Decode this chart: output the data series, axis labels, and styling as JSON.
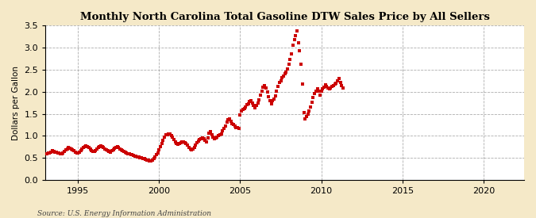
{
  "title": "Monthly North Carolina Total Gasoline DTW Sales Price by All Sellers",
  "ylabel": "Dollars per Gallon",
  "source": "Source: U.S. Energy Information Administration",
  "background_color": "#f5e9c8",
  "plot_bg_color": "#ffffff",
  "marker_color": "#cc0000",
  "grid_color": "#999999",
  "ylim": [
    0.0,
    3.5
  ],
  "yticks": [
    0.0,
    0.5,
    1.0,
    1.5,
    2.0,
    2.5,
    3.0,
    3.5
  ],
  "xlim_start": 1993.0,
  "xlim_end": 2022.5,
  "xticks": [
    1995,
    2000,
    2005,
    2010,
    2015,
    2020
  ],
  "data": [
    [
      1993.0,
      0.59
    ],
    [
      1993.08,
      0.6
    ],
    [
      1993.17,
      0.61
    ],
    [
      1993.25,
      0.62
    ],
    [
      1993.33,
      0.64
    ],
    [
      1993.42,
      0.66
    ],
    [
      1993.5,
      0.65
    ],
    [
      1993.58,
      0.64
    ],
    [
      1993.67,
      0.63
    ],
    [
      1993.75,
      0.62
    ],
    [
      1993.83,
      0.61
    ],
    [
      1993.92,
      0.6
    ],
    [
      1994.0,
      0.6
    ],
    [
      1994.08,
      0.62
    ],
    [
      1994.17,
      0.65
    ],
    [
      1994.25,
      0.68
    ],
    [
      1994.33,
      0.71
    ],
    [
      1994.42,
      0.73
    ],
    [
      1994.5,
      0.72
    ],
    [
      1994.58,
      0.7
    ],
    [
      1994.67,
      0.68
    ],
    [
      1994.75,
      0.66
    ],
    [
      1994.83,
      0.64
    ],
    [
      1994.92,
      0.62
    ],
    [
      1995.0,
      0.61
    ],
    [
      1995.08,
      0.63
    ],
    [
      1995.17,
      0.66
    ],
    [
      1995.25,
      0.7
    ],
    [
      1995.33,
      0.74
    ],
    [
      1995.42,
      0.76
    ],
    [
      1995.5,
      0.77
    ],
    [
      1995.58,
      0.75
    ],
    [
      1995.67,
      0.73
    ],
    [
      1995.75,
      0.7
    ],
    [
      1995.83,
      0.67
    ],
    [
      1995.92,
      0.65
    ],
    [
      1996.0,
      0.65
    ],
    [
      1996.08,
      0.67
    ],
    [
      1996.17,
      0.7
    ],
    [
      1996.25,
      0.74
    ],
    [
      1996.33,
      0.76
    ],
    [
      1996.42,
      0.77
    ],
    [
      1996.5,
      0.75
    ],
    [
      1996.58,
      0.73
    ],
    [
      1996.67,
      0.71
    ],
    [
      1996.75,
      0.69
    ],
    [
      1996.83,
      0.67
    ],
    [
      1996.92,
      0.65
    ],
    [
      1997.0,
      0.64
    ],
    [
      1997.08,
      0.66
    ],
    [
      1997.17,
      0.69
    ],
    [
      1997.25,
      0.72
    ],
    [
      1997.33,
      0.74
    ],
    [
      1997.42,
      0.75
    ],
    [
      1997.5,
      0.73
    ],
    [
      1997.58,
      0.71
    ],
    [
      1997.67,
      0.69
    ],
    [
      1997.75,
      0.67
    ],
    [
      1997.83,
      0.65
    ],
    [
      1997.92,
      0.63
    ],
    [
      1998.0,
      0.62
    ],
    [
      1998.08,
      0.6
    ],
    [
      1998.17,
      0.59
    ],
    [
      1998.25,
      0.58
    ],
    [
      1998.33,
      0.57
    ],
    [
      1998.42,
      0.56
    ],
    [
      1998.5,
      0.55
    ],
    [
      1998.58,
      0.54
    ],
    [
      1998.67,
      0.53
    ],
    [
      1998.75,
      0.52
    ],
    [
      1998.83,
      0.51
    ],
    [
      1998.92,
      0.5
    ],
    [
      1999.0,
      0.49
    ],
    [
      1999.08,
      0.48
    ],
    [
      1999.17,
      0.47
    ],
    [
      1999.25,
      0.46
    ],
    [
      1999.33,
      0.45
    ],
    [
      1999.42,
      0.44
    ],
    [
      1999.5,
      0.44
    ],
    [
      1999.58,
      0.46
    ],
    [
      1999.67,
      0.49
    ],
    [
      1999.75,
      0.53
    ],
    [
      1999.83,
      0.57
    ],
    [
      1999.92,
      0.62
    ],
    [
      2000.0,
      0.68
    ],
    [
      2000.08,
      0.75
    ],
    [
      2000.17,
      0.82
    ],
    [
      2000.25,
      0.9
    ],
    [
      2000.33,
      0.97
    ],
    [
      2000.42,
      1.02
    ],
    [
      2000.5,
      1.03
    ],
    [
      2000.58,
      1.04
    ],
    [
      2000.67,
      1.04
    ],
    [
      2000.75,
      1.01
    ],
    [
      2000.83,
      0.97
    ],
    [
      2000.92,
      0.91
    ],
    [
      2001.0,
      0.86
    ],
    [
      2001.08,
      0.83
    ],
    [
      2001.17,
      0.81
    ],
    [
      2001.25,
      0.82
    ],
    [
      2001.33,
      0.84
    ],
    [
      2001.42,
      0.86
    ],
    [
      2001.5,
      0.87
    ],
    [
      2001.58,
      0.85
    ],
    [
      2001.67,
      0.83
    ],
    [
      2001.75,
      0.79
    ],
    [
      2001.83,
      0.74
    ],
    [
      2001.92,
      0.7
    ],
    [
      2002.0,
      0.68
    ],
    [
      2002.08,
      0.71
    ],
    [
      2002.17,
      0.74
    ],
    [
      2002.25,
      0.79
    ],
    [
      2002.33,
      0.84
    ],
    [
      2002.42,
      0.89
    ],
    [
      2002.5,
      0.92
    ],
    [
      2002.58,
      0.94
    ],
    [
      2002.67,
      0.95
    ],
    [
      2002.75,
      0.93
    ],
    [
      2002.83,
      0.9
    ],
    [
      2002.92,
      0.87
    ],
    [
      2003.0,
      0.96
    ],
    [
      2003.08,
      1.06
    ],
    [
      2003.17,
      1.09
    ],
    [
      2003.25,
      1.03
    ],
    [
      2003.33,
      0.97
    ],
    [
      2003.42,
      0.94
    ],
    [
      2003.5,
      0.95
    ],
    [
      2003.58,
      0.97
    ],
    [
      2003.67,
      1.0
    ],
    [
      2003.75,
      1.02
    ],
    [
      2003.83,
      1.05
    ],
    [
      2003.92,
      1.11
    ],
    [
      2004.0,
      1.17
    ],
    [
      2004.08,
      1.22
    ],
    [
      2004.17,
      1.32
    ],
    [
      2004.25,
      1.37
    ],
    [
      2004.33,
      1.38
    ],
    [
      2004.42,
      1.33
    ],
    [
      2004.5,
      1.28
    ],
    [
      2004.58,
      1.25
    ],
    [
      2004.67,
      1.22
    ],
    [
      2004.75,
      1.19
    ],
    [
      2004.83,
      1.18
    ],
    [
      2004.92,
      1.17
    ],
    [
      2005.0,
      1.48
    ],
    [
      2005.08,
      1.57
    ],
    [
      2005.17,
      1.6
    ],
    [
      2005.25,
      1.62
    ],
    [
      2005.33,
      1.66
    ],
    [
      2005.42,
      1.7
    ],
    [
      2005.5,
      1.73
    ],
    [
      2005.58,
      1.77
    ],
    [
      2005.67,
      1.8
    ],
    [
      2005.75,
      1.74
    ],
    [
      2005.83,
      1.69
    ],
    [
      2005.92,
      1.63
    ],
    [
      2006.0,
      1.68
    ],
    [
      2006.08,
      1.74
    ],
    [
      2006.17,
      1.82
    ],
    [
      2006.25,
      1.92
    ],
    [
      2006.33,
      2.02
    ],
    [
      2006.42,
      2.1
    ],
    [
      2006.5,
      2.13
    ],
    [
      2006.58,
      2.08
    ],
    [
      2006.67,
      1.99
    ],
    [
      2006.75,
      1.89
    ],
    [
      2006.83,
      1.79
    ],
    [
      2006.92,
      1.73
    ],
    [
      2007.0,
      1.79
    ],
    [
      2007.08,
      1.84
    ],
    [
      2007.17,
      1.9
    ],
    [
      2007.25,
      2.01
    ],
    [
      2007.33,
      2.11
    ],
    [
      2007.42,
      2.2
    ],
    [
      2007.5,
      2.25
    ],
    [
      2007.58,
      2.31
    ],
    [
      2007.67,
      2.36
    ],
    [
      2007.75,
      2.41
    ],
    [
      2007.83,
      2.44
    ],
    [
      2007.92,
      2.52
    ],
    [
      2008.0,
      2.62
    ],
    [
      2008.08,
      2.72
    ],
    [
      2008.17,
      2.85
    ],
    [
      2008.25,
      3.05
    ],
    [
      2008.33,
      3.18
    ],
    [
      2008.42,
      3.27
    ],
    [
      2008.5,
      3.37
    ],
    [
      2008.58,
      3.1
    ],
    [
      2008.67,
      2.93
    ],
    [
      2008.75,
      2.62
    ],
    [
      2008.83,
      2.17
    ],
    [
      2008.92,
      1.52
    ],
    [
      2009.0,
      1.38
    ],
    [
      2009.08,
      1.44
    ],
    [
      2009.17,
      1.5
    ],
    [
      2009.25,
      1.56
    ],
    [
      2009.33,
      1.66
    ],
    [
      2009.42,
      1.76
    ],
    [
      2009.5,
      1.86
    ],
    [
      2009.58,
      1.96
    ],
    [
      2009.67,
      2.01
    ],
    [
      2009.75,
      2.06
    ],
    [
      2009.83,
      2.02
    ],
    [
      2009.92,
      1.92
    ],
    [
      2010.0,
      2.01
    ],
    [
      2010.08,
      2.06
    ],
    [
      2010.17,
      2.1
    ],
    [
      2010.25,
      2.15
    ],
    [
      2010.33,
      2.11
    ],
    [
      2010.42,
      2.09
    ],
    [
      2010.5,
      2.07
    ],
    [
      2010.58,
      2.09
    ],
    [
      2010.67,
      2.11
    ],
    [
      2010.75,
      2.14
    ],
    [
      2010.83,
      2.17
    ],
    [
      2010.92,
      2.19
    ],
    [
      2011.0,
      2.24
    ],
    [
      2011.08,
      2.29
    ],
    [
      2011.17,
      2.21
    ],
    [
      2011.25,
      2.14
    ],
    [
      2011.33,
      2.08
    ]
  ]
}
